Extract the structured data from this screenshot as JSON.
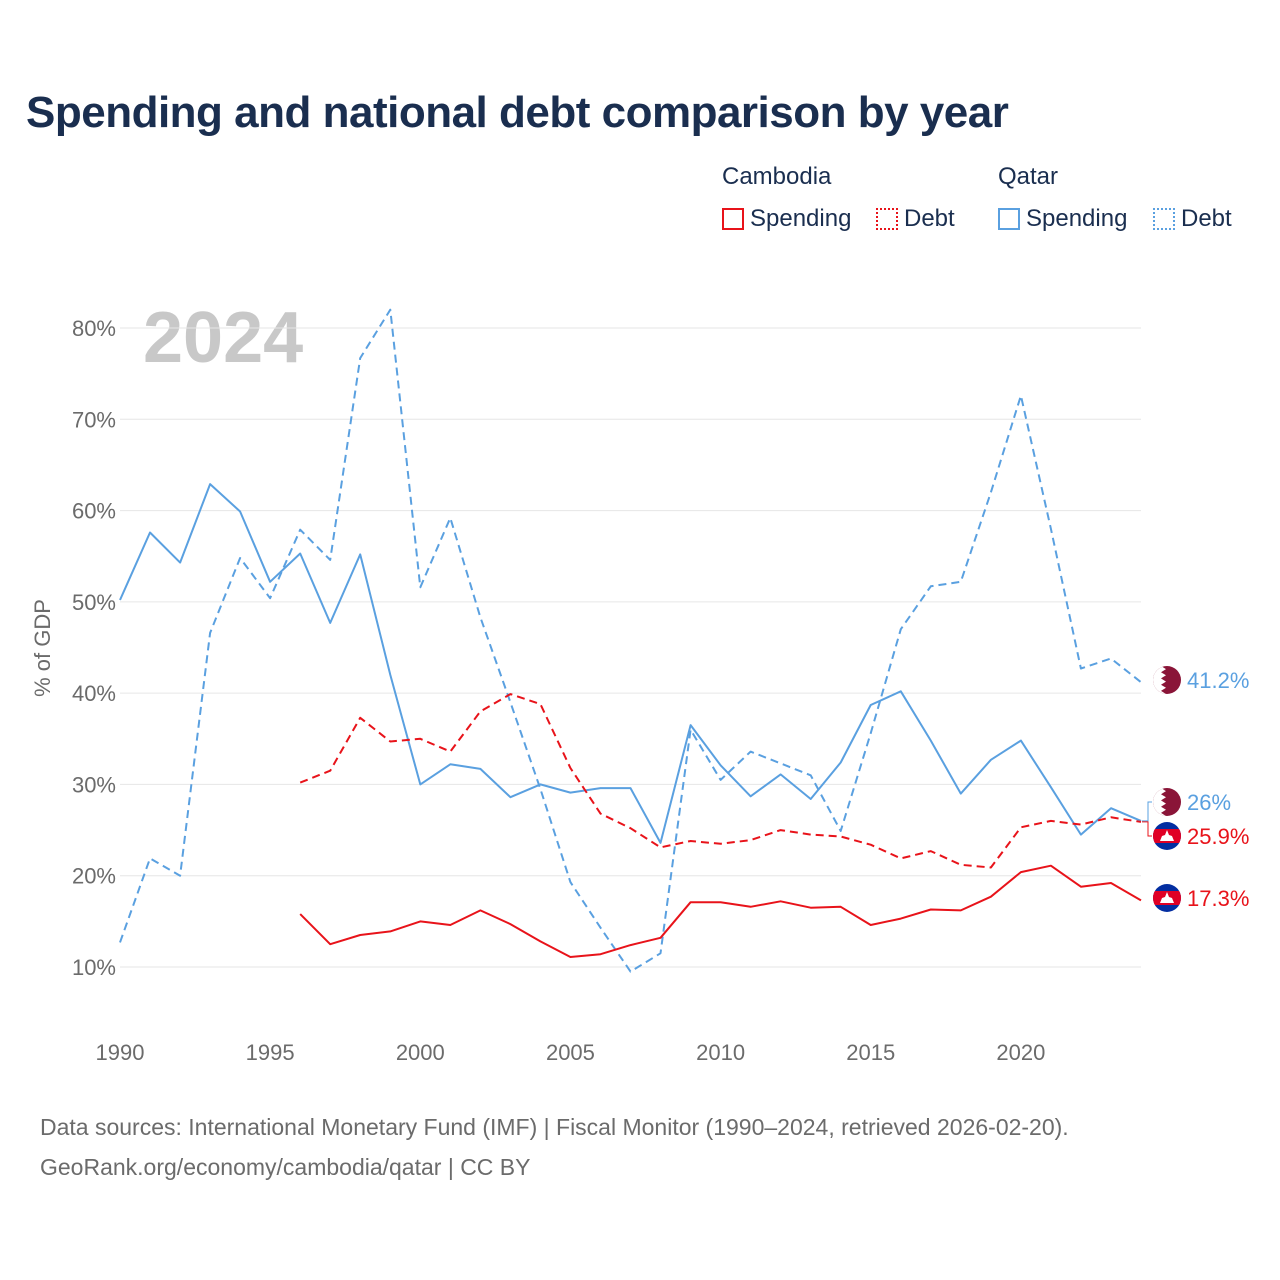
{
  "chart_data": {
    "type": "line",
    "title": "Spending and national debt comparison by year",
    "year_label": "2024",
    "ylabel": "% of GDP",
    "xlabel": "",
    "xlim": [
      1990,
      2024
    ],
    "ylim": [
      5,
      83
    ],
    "grid": true,
    "x_ticks": [
      1990,
      1995,
      2000,
      2005,
      2010,
      2015,
      2020
    ],
    "x_tick_labels": [
      "1990",
      "1995",
      "2000",
      "2005",
      "2010",
      "2015",
      "2020"
    ],
    "y_ticks": [
      10,
      20,
      30,
      40,
      50,
      60,
      70,
      80
    ],
    "y_tick_labels": [
      "10%",
      "20%",
      "30%",
      "40%",
      "50%",
      "60%",
      "70%",
      "80%"
    ],
    "legend": {
      "groups": [
        {
          "name": "Cambodia",
          "items": [
            {
              "label": "Spending",
              "style": "solid"
            },
            {
              "label": "Debt",
              "style": "dotted"
            }
          ],
          "color": "#e8131a"
        },
        {
          "name": "Qatar",
          "items": [
            {
              "label": "Spending",
              "style": "solid"
            },
            {
              "label": "Debt",
              "style": "dotted"
            }
          ],
          "color": "#5aa0e0"
        }
      ]
    },
    "series": [
      {
        "name": "Qatar Spending",
        "country": "Qatar",
        "metric": "Spending",
        "color": "#5aa0e0",
        "dash": "solid",
        "x": [
          1990,
          1991,
          1992,
          1993,
          1994,
          1995,
          1996,
          1997,
          1998,
          1999,
          2000,
          2001,
          2002,
          2003,
          2004,
          2005,
          2006,
          2007,
          2008,
          2009,
          2010,
          2011,
          2012,
          2013,
          2014,
          2015,
          2016,
          2017,
          2018,
          2019,
          2020,
          2021,
          2022,
          2023,
          2024
        ],
        "values": [
          50.2,
          57.6,
          54.3,
          62.9,
          59.9,
          52.2,
          55.3,
          47.7,
          55.2,
          42.0,
          30.0,
          32.2,
          31.7,
          28.6,
          30.0,
          29.1,
          29.6,
          29.6,
          23.6,
          36.5,
          32.1,
          28.7,
          31.1,
          28.4,
          32.4,
          38.7,
          40.2,
          34.8,
          29.0,
          32.7,
          34.8,
          29.7,
          24.5,
          27.4,
          26.0
        ]
      },
      {
        "name": "Qatar Debt",
        "country": "Qatar",
        "metric": "Debt",
        "color": "#5aa0e0",
        "dash": "dashed",
        "x": [
          1990,
          1991,
          1992,
          1993,
          1994,
          1995,
          1996,
          1997,
          1998,
          1999,
          2000,
          2001,
          2002,
          2003,
          2004,
          2005,
          2006,
          2007,
          2008,
          2009,
          2010,
          2011,
          2012,
          2013,
          2014,
          2015,
          2016,
          2017,
          2018,
          2019,
          2020,
          2021,
          2022,
          2023,
          2024
        ],
        "values": [
          12.7,
          21.9,
          20.0,
          46.6,
          54.8,
          50.4,
          57.9,
          54.6,
          76.7,
          82.0,
          51.6,
          59.2,
          48.3,
          39.0,
          29.5,
          19.3,
          14.3,
          9.5,
          11.5,
          36.0,
          30.5,
          33.6,
          32.3,
          31.0,
          24.9,
          35.6,
          47.0,
          51.7,
          52.2,
          62.0,
          72.6,
          58.0,
          42.7,
          43.8,
          41.2
        ]
      },
      {
        "name": "Cambodia Spending",
        "country": "Cambodia",
        "metric": "Spending",
        "color": "#e8131a",
        "dash": "solid",
        "x": [
          1996,
          1997,
          1998,
          1999,
          2000,
          2001,
          2002,
          2003,
          2004,
          2005,
          2006,
          2007,
          2008,
          2009,
          2010,
          2011,
          2012,
          2013,
          2014,
          2015,
          2016,
          2017,
          2018,
          2019,
          2020,
          2021,
          2022,
          2023,
          2024
        ],
        "values": [
          15.8,
          12.5,
          13.5,
          13.9,
          15.0,
          14.6,
          16.2,
          14.7,
          12.8,
          11.1,
          11.4,
          12.4,
          13.2,
          17.1,
          17.1,
          16.6,
          17.2,
          16.5,
          16.6,
          14.6,
          15.3,
          16.3,
          16.2,
          17.7,
          20.4,
          21.1,
          18.8,
          19.2,
          17.3
        ]
      },
      {
        "name": "Cambodia Debt",
        "country": "Cambodia",
        "metric": "Debt",
        "color": "#e8131a",
        "dash": "dashed",
        "x": [
          1996,
          1997,
          1998,
          1999,
          2000,
          2001,
          2002,
          2003,
          2004,
          2005,
          2006,
          2007,
          2008,
          2009,
          2010,
          2011,
          2012,
          2013,
          2014,
          2015,
          2016,
          2017,
          2018,
          2019,
          2020,
          2021,
          2022,
          2023,
          2024
        ],
        "values": [
          30.2,
          31.5,
          37.3,
          34.7,
          35.0,
          33.6,
          38.0,
          39.9,
          38.8,
          31.8,
          26.8,
          25.2,
          23.1,
          23.8,
          23.5,
          23.9,
          25.0,
          24.5,
          24.3,
          23.4,
          21.9,
          22.7,
          21.2,
          20.9,
          25.3,
          26.0,
          25.6,
          26.4,
          25.9
        ]
      }
    ],
    "end_labels": [
      {
        "text": "41.2%",
        "value": 41.2,
        "color": "#5aa0e0",
        "flag": "qatar-flag"
      },
      {
        "text": "26%",
        "value": 26.0,
        "color": "#5aa0e0",
        "flag": "qatar-flag"
      },
      {
        "text": "25.9%",
        "value": 25.9,
        "color": "#e8131a",
        "flag": "cambodia-flag"
      },
      {
        "text": "17.3%",
        "value": 17.3,
        "color": "#e8131a",
        "flag": "cambodia-flag"
      }
    ]
  },
  "sources": {
    "line1": "Data sources: International Monetary Fund (IMF) | Fiscal Monitor (1990–2024, retrieved 2026-02-20).",
    "line2": "GeoRank.org/economy/cambodia/qatar | CC BY"
  }
}
